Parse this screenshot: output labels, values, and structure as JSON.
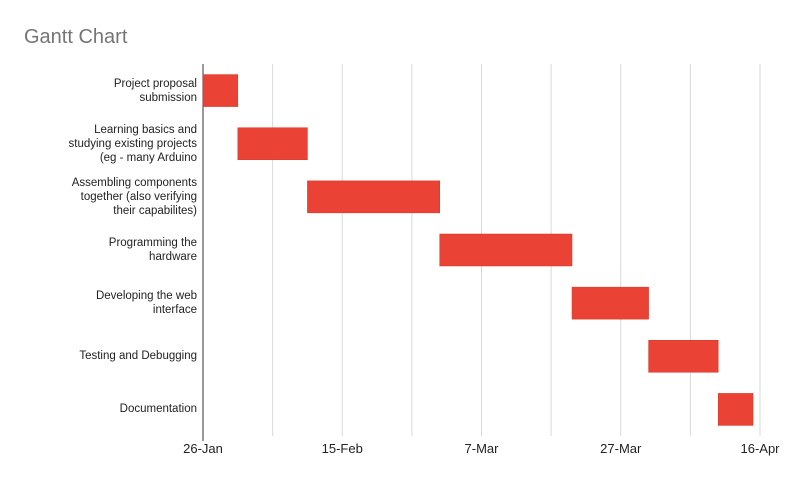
{
  "chart_data": {
    "type": "bar",
    "title": "Gantt Chart",
    "xlabel": "",
    "ylabel": "",
    "x_ticks": [
      "26-Jan",
      "15-Feb",
      "7-Mar",
      "27-Mar",
      "16-Apr"
    ],
    "x_range": [
      "2021-01-26",
      "2021-04-16"
    ],
    "grid": true,
    "colors": {
      "bar": "#ea4335",
      "grid": "#d9d9d9",
      "axis": "#333333"
    },
    "tasks": [
      {
        "label": "Project proposal\nsubmission",
        "start": "2021-01-26",
        "end": "2021-01-31"
      },
      {
        "label": "Learning basics and\nstudying existing projects\n(eg - many Arduino",
        "start": "2021-01-31",
        "end": "2021-02-10"
      },
      {
        "label": "Assembling components\ntogether (also verifying\ntheir capabilites)",
        "start": "2021-02-10",
        "end": "2021-03-01"
      },
      {
        "label": "Programming the\nhardware",
        "start": "2021-03-01",
        "end": "2021-03-20"
      },
      {
        "label": "Developing the web\ninterface",
        "start": "2021-03-20",
        "end": "2021-03-31"
      },
      {
        "label": "Testing and Debugging",
        "start": "2021-03-31",
        "end": "2021-04-10"
      },
      {
        "label": "Documentation",
        "start": "2021-04-10",
        "end": "2021-04-15"
      }
    ]
  }
}
